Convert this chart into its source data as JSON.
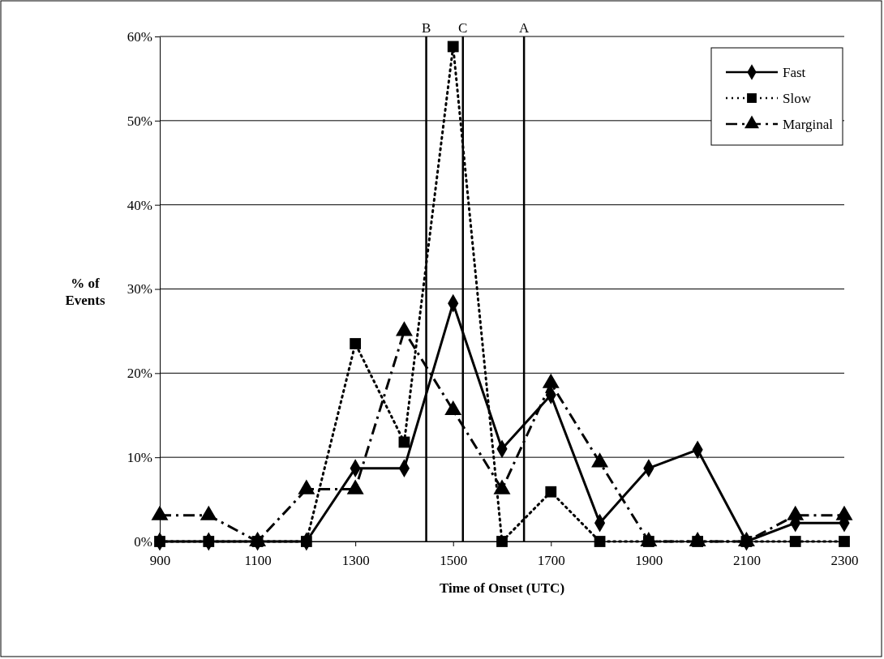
{
  "chart_data": {
    "type": "line",
    "xlabel": "Time of Onset (UTC)",
    "ylabel": "% of Events",
    "x": [
      900,
      1000,
      1100,
      1200,
      1300,
      1400,
      1500,
      1600,
      1700,
      1800,
      1900,
      2000,
      2100,
      2200,
      2300
    ],
    "series": [
      {
        "name": "Fast",
        "color": "#000000",
        "marker": "diamond",
        "line_style": "solid",
        "values": [
          0,
          0,
          0,
          0,
          8.7,
          8.7,
          28.3,
          11,
          17.4,
          2.2,
          8.7,
          10.9,
          0,
          2.2,
          2.2
        ]
      },
      {
        "name": "Slow",
        "color": "#000000",
        "marker": "square",
        "line_style": "dotted",
        "values": [
          0,
          0,
          0,
          0,
          23.5,
          11.8,
          58.8,
          0,
          5.9,
          0,
          0,
          0,
          0,
          0,
          0
        ]
      },
      {
        "name": "Marginal",
        "color": "#000000",
        "marker": "triangle",
        "line_style": "dashed",
        "values": [
          3.1,
          3.1,
          0,
          6.2,
          6.2,
          25,
          15.6,
          6.2,
          18.8,
          9.4,
          0,
          0,
          0,
          3.1,
          3.1
        ]
      }
    ],
    "xlim": [
      900,
      2300
    ],
    "xticks": [
      900,
      1100,
      1300,
      1500,
      1700,
      1900,
      2100,
      2300
    ],
    "ylim": [
      0,
      60
    ],
    "yticks": [
      {
        "value": 0,
        "label": "0%"
      },
      {
        "value": 10,
        "label": "10%"
      },
      {
        "value": 20,
        "label": "20%"
      },
      {
        "value": 30,
        "label": "30%"
      },
      {
        "value": 40,
        "label": "40%"
      },
      {
        "value": 50,
        "label": "50%"
      },
      {
        "value": 60,
        "label": "60%"
      }
    ],
    "grid": "y",
    "legend": "top right",
    "ref_lines": [
      {
        "axis": "x",
        "value": 1445,
        "label": "B",
        "color": "#000000"
      },
      {
        "axis": "x",
        "value": 1520,
        "label": "C",
        "color": "#000000"
      },
      {
        "axis": "x",
        "value": 1645,
        "label": "A",
        "color": "#000000"
      }
    ]
  }
}
